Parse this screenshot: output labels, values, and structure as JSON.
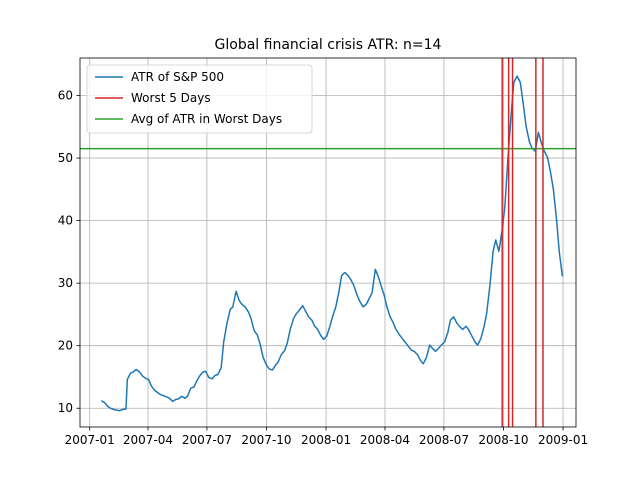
{
  "chart_data": {
    "type": "line",
    "title": "Global financial crisis ATR: n=14",
    "xlabel": "",
    "ylabel": "",
    "x_ticks": [
      "2007-01",
      "2007-04",
      "2007-07",
      "2007-10",
      "2008-01",
      "2008-04",
      "2008-07",
      "2008-10",
      "2009-01"
    ],
    "y_ticks": [
      10,
      20,
      30,
      40,
      50,
      60
    ],
    "xlim": [
      "2006-12-17",
      "2009-01-21"
    ],
    "ylim": [
      7,
      66
    ],
    "grid": true,
    "legend_position": "top-left",
    "legend": [
      "ATR of S&P 500",
      "Worst 5 Days",
      "Avg of ATR in Worst Days"
    ],
    "series": [
      {
        "name": "ATR of S&P 500",
        "color": "#1f77b4",
        "points": [
          [
            "2007-01-19",
            11.2
          ],
          [
            "2007-01-24",
            10.9
          ],
          [
            "2007-01-29",
            10.3
          ],
          [
            "2007-02-02",
            10.0
          ],
          [
            "2007-02-07",
            9.8
          ],
          [
            "2007-02-12",
            9.7
          ],
          [
            "2007-02-16",
            9.6
          ],
          [
            "2007-02-21",
            9.8
          ],
          [
            "2007-02-26",
            9.9
          ],
          [
            "2007-02-28",
            14.6
          ],
          [
            "2007-03-05",
            15.6
          ],
          [
            "2007-03-09",
            15.8
          ],
          [
            "2007-03-14",
            16.2
          ],
          [
            "2007-03-19",
            15.8
          ],
          [
            "2007-03-23",
            15.2
          ],
          [
            "2007-03-28",
            14.8
          ],
          [
            "2007-04-02",
            14.6
          ],
          [
            "2007-04-06",
            13.6
          ],
          [
            "2007-04-11",
            12.9
          ],
          [
            "2007-04-16",
            12.5
          ],
          [
            "2007-04-20",
            12.2
          ],
          [
            "2007-04-25",
            12.0
          ],
          [
            "2007-04-30",
            11.8
          ],
          [
            "2007-05-04",
            11.6
          ],
          [
            "2007-05-09",
            11.1
          ],
          [
            "2007-05-14",
            11.4
          ],
          [
            "2007-05-18",
            11.5
          ],
          [
            "2007-05-23",
            11.9
          ],
          [
            "2007-05-28",
            11.6
          ],
          [
            "2007-06-01",
            11.9
          ],
          [
            "2007-06-06",
            13.2
          ],
          [
            "2007-06-11",
            13.4
          ],
          [
            "2007-06-15",
            14.3
          ],
          [
            "2007-06-20",
            15.2
          ],
          [
            "2007-06-25",
            15.8
          ],
          [
            "2007-06-29",
            15.9
          ],
          [
            "2007-07-04",
            14.9
          ],
          [
            "2007-07-09",
            14.7
          ],
          [
            "2007-07-13",
            15.2
          ],
          [
            "2007-07-18",
            15.4
          ],
          [
            "2007-07-23",
            16.5
          ],
          [
            "2007-07-27",
            20.6
          ],
          [
            "2007-08-01",
            23.6
          ],
          [
            "2007-08-06",
            25.8
          ],
          [
            "2007-08-10",
            26.2
          ],
          [
            "2007-08-15",
            28.7
          ],
          [
            "2007-08-20",
            27.2
          ],
          [
            "2007-08-24",
            26.6
          ],
          [
            "2007-08-29",
            26.2
          ],
          [
            "2007-09-03",
            25.4
          ],
          [
            "2007-09-07",
            24.4
          ],
          [
            "2007-09-12",
            22.4
          ],
          [
            "2007-09-17",
            21.7
          ],
          [
            "2007-09-21",
            20.3
          ],
          [
            "2007-09-26",
            18.1
          ],
          [
            "2007-10-01",
            16.9
          ],
          [
            "2007-10-05",
            16.3
          ],
          [
            "2007-10-10",
            16.1
          ],
          [
            "2007-10-15",
            16.9
          ],
          [
            "2007-10-19",
            17.4
          ],
          [
            "2007-10-24",
            18.6
          ],
          [
            "2007-10-29",
            19.2
          ],
          [
            "2007-11-02",
            20.4
          ],
          [
            "2007-11-07",
            22.7
          ],
          [
            "2007-11-12",
            24.4
          ],
          [
            "2007-11-16",
            25.1
          ],
          [
            "2007-11-21",
            25.7
          ],
          [
            "2007-11-26",
            26.4
          ],
          [
            "2007-11-30",
            25.6
          ],
          [
            "2007-12-05",
            24.6
          ],
          [
            "2007-12-10",
            24.1
          ],
          [
            "2007-12-14",
            23.2
          ],
          [
            "2007-12-19",
            22.6
          ],
          [
            "2007-12-24",
            21.6
          ],
          [
            "2007-12-28",
            21.0
          ],
          [
            "2008-01-02",
            21.5
          ],
          [
            "2008-01-07",
            23.1
          ],
          [
            "2008-01-11",
            24.6
          ],
          [
            "2008-01-16",
            26.2
          ],
          [
            "2008-01-21",
            28.7
          ],
          [
            "2008-01-25",
            31.2
          ],
          [
            "2008-01-30",
            31.7
          ],
          [
            "2008-02-04",
            31.2
          ],
          [
            "2008-02-08",
            30.6
          ],
          [
            "2008-02-13",
            29.6
          ],
          [
            "2008-02-18",
            28.1
          ],
          [
            "2008-02-22",
            27.1
          ],
          [
            "2008-02-27",
            26.2
          ],
          [
            "2008-03-03",
            26.6
          ],
          [
            "2008-03-07",
            27.4
          ],
          [
            "2008-03-12",
            28.4
          ],
          [
            "2008-03-17",
            32.2
          ],
          [
            "2008-03-21",
            31.2
          ],
          [
            "2008-03-26",
            29.6
          ],
          [
            "2008-03-31",
            28.0
          ],
          [
            "2008-04-04",
            26.2
          ],
          [
            "2008-04-09",
            24.6
          ],
          [
            "2008-04-14",
            23.6
          ],
          [
            "2008-04-18",
            22.6
          ],
          [
            "2008-04-23",
            21.8
          ],
          [
            "2008-04-28",
            21.1
          ],
          [
            "2008-05-02",
            20.6
          ],
          [
            "2008-05-07",
            19.9
          ],
          [
            "2008-05-12",
            19.3
          ],
          [
            "2008-05-16",
            19.1
          ],
          [
            "2008-05-21",
            18.6
          ],
          [
            "2008-05-26",
            17.6
          ],
          [
            "2008-05-30",
            17.1
          ],
          [
            "2008-06-04",
            18.1
          ],
          [
            "2008-06-09",
            20.1
          ],
          [
            "2008-06-13",
            19.6
          ],
          [
            "2008-06-18",
            19.1
          ],
          [
            "2008-06-23",
            19.6
          ],
          [
            "2008-06-27",
            20.1
          ],
          [
            "2008-07-02",
            20.6
          ],
          [
            "2008-07-07",
            22.1
          ],
          [
            "2008-07-11",
            24.1
          ],
          [
            "2008-07-16",
            24.6
          ],
          [
            "2008-07-21",
            23.6
          ],
          [
            "2008-07-25",
            23.1
          ],
          [
            "2008-07-30",
            22.6
          ],
          [
            "2008-08-04",
            23.1
          ],
          [
            "2008-08-08",
            22.6
          ],
          [
            "2008-08-13",
            21.6
          ],
          [
            "2008-08-18",
            20.6
          ],
          [
            "2008-08-22",
            20.1
          ],
          [
            "2008-08-27",
            21.1
          ],
          [
            "2008-09-01",
            23.1
          ],
          [
            "2008-09-05",
            25.1
          ],
          [
            "2008-09-10",
            29.6
          ],
          [
            "2008-09-15",
            35.1
          ],
          [
            "2008-09-19",
            36.9
          ],
          [
            "2008-09-24",
            35.1
          ],
          [
            "2008-09-29",
            38.6
          ],
          [
            "2008-10-03",
            42.1
          ],
          [
            "2008-10-08",
            50.1
          ],
          [
            "2008-10-13",
            57.1
          ],
          [
            "2008-10-17",
            62.1
          ],
          [
            "2008-10-22",
            63.1
          ],
          [
            "2008-10-27",
            62.1
          ],
          [
            "2008-10-31",
            59.1
          ],
          [
            "2008-11-05",
            55.1
          ],
          [
            "2008-11-10",
            52.6
          ],
          [
            "2008-11-14",
            51.6
          ],
          [
            "2008-11-19",
            51.1
          ],
          [
            "2008-11-24",
            54.1
          ],
          [
            "2008-11-28",
            52.6
          ],
          [
            "2008-12-03",
            51.1
          ],
          [
            "2008-12-08",
            50.1
          ],
          [
            "2008-12-12",
            48.1
          ],
          [
            "2008-12-17",
            45.1
          ],
          [
            "2008-12-22",
            40.1
          ],
          [
            "2008-12-26",
            35.1
          ],
          [
            "2008-12-31",
            31.1
          ]
        ]
      }
    ],
    "worst_days": {
      "name": "Worst 5 Days",
      "color": "#d62728",
      "dates": [
        "2008-09-29",
        "2008-10-09",
        "2008-10-15",
        "2008-11-20",
        "2008-12-01"
      ]
    },
    "average_line": {
      "name": "Avg of ATR in Worst Days",
      "color": "#2ca02c",
      "value": 51.5
    }
  }
}
